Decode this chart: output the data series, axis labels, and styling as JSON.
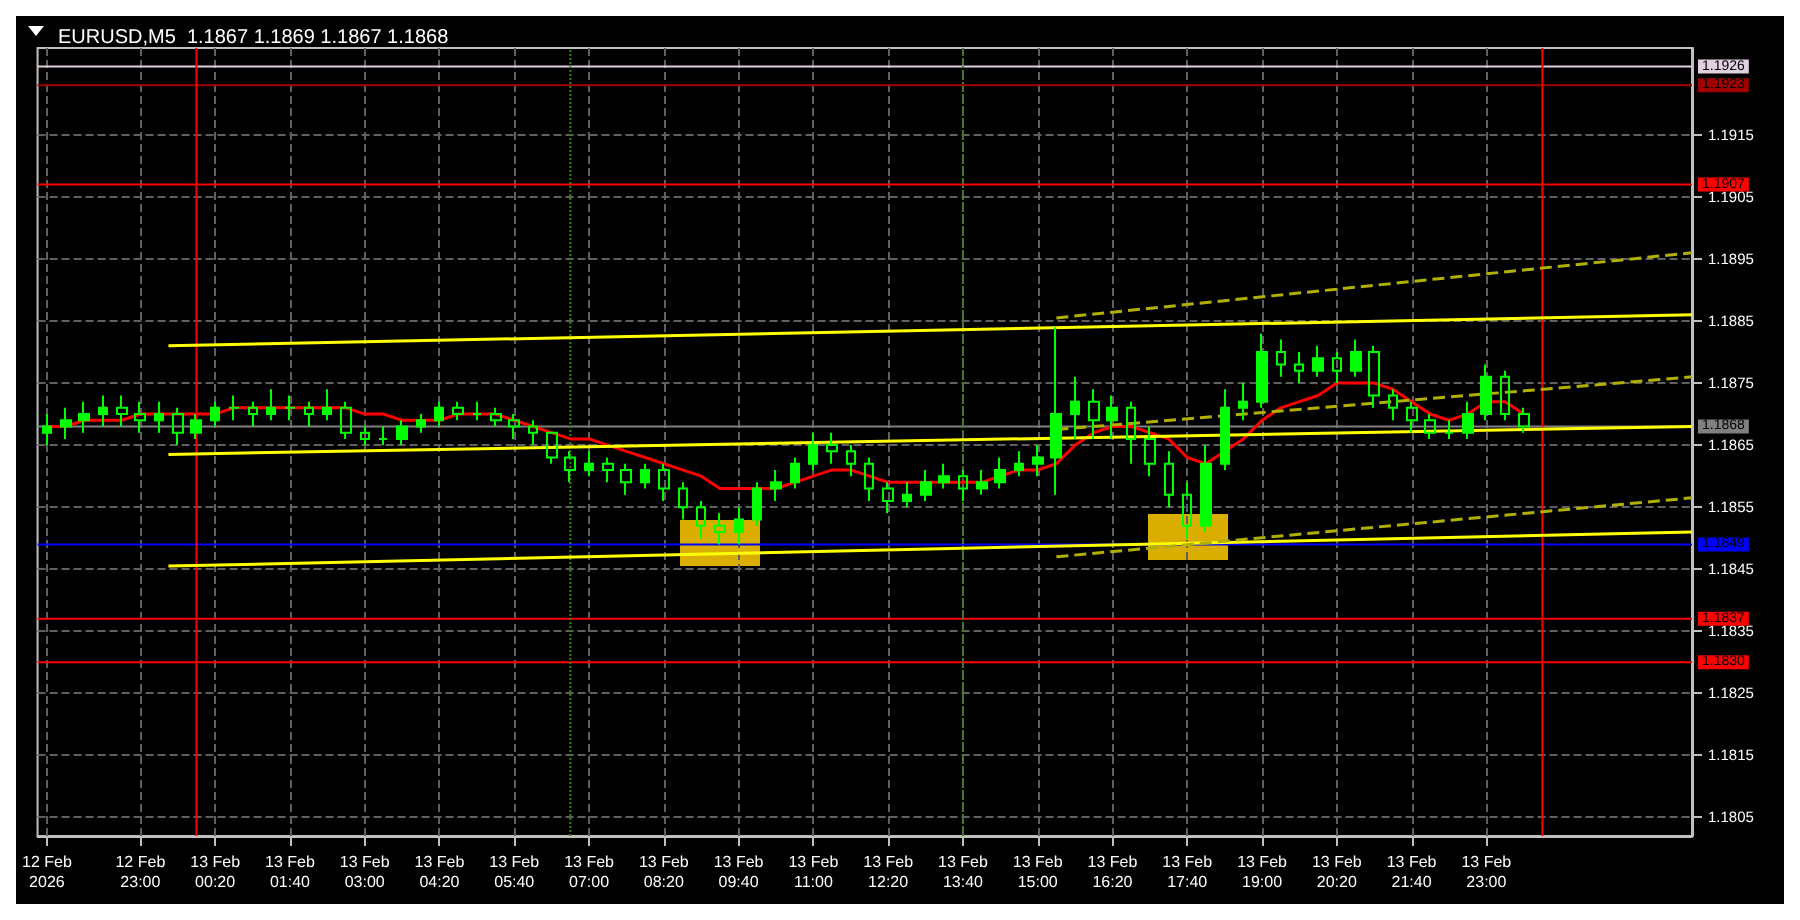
{
  "chart_data": {
    "type": "candlestick",
    "title": "EURUSD,M5  1.1867 1.1869 1.1867 1.1868",
    "color": "#00ff00",
    "x": [
      "2026-02-12T21:20",
      "2026-02-12T21:40",
      "2026-02-12T22:00",
      "2026-02-12T22:20",
      "2026-02-12T22:40",
      "2026-02-12T23:00",
      "2026-02-12T23:20",
      "2026-02-12T23:40",
      "2026-02-13T00:00",
      "2026-02-13T00:20",
      "2026-02-13T00:40",
      "2026-02-13T01:00",
      "2026-02-13T01:20",
      "2026-02-13T01:40",
      "2026-02-13T02:00",
      "2026-02-13T02:20",
      "2026-02-13T02:40",
      "2026-02-13T03:00",
      "2026-02-13T03:20",
      "2026-02-13T03:40",
      "2026-02-13T04:00",
      "2026-02-13T04:20",
      "2026-02-13T04:40",
      "2026-02-13T05:00",
      "2026-02-13T05:20",
      "2026-02-13T05:40",
      "2026-02-13T06:00",
      "2026-02-13T06:20",
      "2026-02-13T06:40",
      "2026-02-13T07:00",
      "2026-02-13T07:20",
      "2026-02-13T07:40",
      "2026-02-13T08:00",
      "2026-02-13T08:20",
      "2026-02-13T08:40",
      "2026-02-13T09:00",
      "2026-02-13T09:20",
      "2026-02-13T09:40",
      "2026-02-13T10:00",
      "2026-02-13T10:20",
      "2026-02-13T10:40",
      "2026-02-13T11:00",
      "2026-02-13T11:20",
      "2026-02-13T11:40",
      "2026-02-13T12:00",
      "2026-02-13T12:20",
      "2026-02-13T12:40",
      "2026-02-13T13:00",
      "2026-02-13T13:20",
      "2026-02-13T13:40",
      "2026-02-13T14:00",
      "2026-02-13T14:20",
      "2026-02-13T14:40",
      "2026-02-13T15:00",
      "2026-02-13T15:20",
      "2026-02-13T15:40",
      "2026-02-13T16:00",
      "2026-02-13T16:20",
      "2026-02-13T16:40",
      "2026-02-13T17:00",
      "2026-02-13T17:20",
      "2026-02-13T17:40",
      "2026-02-13T18:00",
      "2026-02-13T18:20",
      "2026-02-13T18:40",
      "2026-02-13T19:00",
      "2026-02-13T19:20",
      "2026-02-13T19:40",
      "2026-02-13T20:00",
      "2026-02-13T20:20",
      "2026-02-13T20:40",
      "2026-02-13T21:00",
      "2026-02-13T21:20",
      "2026-02-13T21:40",
      "2026-02-13T22:00",
      "2026-02-13T22:20",
      "2026-02-13T22:40",
      "2026-02-13T23:00",
      "2026-02-13T23:20",
      "2026-02-13T23:40"
    ],
    "ohlc": [
      [
        1.1867,
        1.187,
        1.1865,
        1.1868
      ],
      [
        1.1868,
        1.1871,
        1.1866,
        1.1869
      ],
      [
        1.1869,
        1.1872,
        1.1867,
        1.187
      ],
      [
        1.187,
        1.1873,
        1.1868,
        1.1871
      ],
      [
        1.1871,
        1.1873,
        1.1868,
        1.187
      ],
      [
        1.187,
        1.1872,
        1.1867,
        1.1869
      ],
      [
        1.1869,
        1.1872,
        1.1867,
        1.187
      ],
      [
        1.187,
        1.1871,
        1.1865,
        1.1867
      ],
      [
        1.1867,
        1.187,
        1.1866,
        1.1869
      ],
      [
        1.1869,
        1.1872,
        1.1868,
        1.1871
      ],
      [
        1.1871,
        1.1873,
        1.1869,
        1.1871
      ],
      [
        1.1871,
        1.1872,
        1.1868,
        1.187
      ],
      [
        1.187,
        1.1874,
        1.1869,
        1.1871
      ],
      [
        1.1871,
        1.1873,
        1.1869,
        1.1871
      ],
      [
        1.1871,
        1.1872,
        1.1868,
        1.187
      ],
      [
        1.187,
        1.1874,
        1.1869,
        1.1871
      ],
      [
        1.1871,
        1.1872,
        1.1866,
        1.1867
      ],
      [
        1.1867,
        1.1868,
        1.1865,
        1.1866
      ],
      [
        1.1866,
        1.1868,
        1.1865,
        1.1866
      ],
      [
        1.1866,
        1.1869,
        1.1865,
        1.1868
      ],
      [
        1.1868,
        1.187,
        1.1867,
        1.1869
      ],
      [
        1.1869,
        1.1872,
        1.1868,
        1.1871
      ],
      [
        1.1871,
        1.1872,
        1.1869,
        1.187
      ],
      [
        1.187,
        1.1872,
        1.1869,
        1.187
      ],
      [
        1.187,
        1.1871,
        1.1868,
        1.1869
      ],
      [
        1.1869,
        1.187,
        1.1866,
        1.1868
      ],
      [
        1.1868,
        1.1869,
        1.1865,
        1.1867
      ],
      [
        1.1867,
        1.1867,
        1.1862,
        1.1863
      ],
      [
        1.1863,
        1.1864,
        1.1859,
        1.1861
      ],
      [
        1.1861,
        1.1864,
        1.186,
        1.1862
      ],
      [
        1.1862,
        1.1863,
        1.1859,
        1.1861
      ],
      [
        1.1861,
        1.1862,
        1.1857,
        1.1859
      ],
      [
        1.1859,
        1.1862,
        1.1858,
        1.1861
      ],
      [
        1.1861,
        1.1862,
        1.1856,
        1.1858
      ],
      [
        1.1858,
        1.1859,
        1.1853,
        1.1855
      ],
      [
        1.1855,
        1.1856,
        1.185,
        1.1852
      ],
      [
        1.1852,
        1.1854,
        1.1849,
        1.1851
      ],
      [
        1.1851,
        1.1855,
        1.1849,
        1.1853
      ],
      [
        1.1853,
        1.1859,
        1.1852,
        1.1858
      ],
      [
        1.1858,
        1.1861,
        1.1856,
        1.1859
      ],
      [
        1.1859,
        1.1863,
        1.1858,
        1.1862
      ],
      [
        1.1862,
        1.1867,
        1.1861,
        1.1865
      ],
      [
        1.1865,
        1.1867,
        1.1862,
        1.1864
      ],
      [
        1.1864,
        1.1865,
        1.186,
        1.1862
      ],
      [
        1.1862,
        1.1863,
        1.1856,
        1.1858
      ],
      [
        1.1858,
        1.1859,
        1.1854,
        1.1856
      ],
      [
        1.1856,
        1.1859,
        1.1855,
        1.1857
      ],
      [
        1.1857,
        1.1861,
        1.1856,
        1.1859
      ],
      [
        1.1859,
        1.1862,
        1.1858,
        1.186
      ],
      [
        1.186,
        1.1861,
        1.1856,
        1.1858
      ],
      [
        1.1858,
        1.1861,
        1.1857,
        1.1859
      ],
      [
        1.1859,
        1.1863,
        1.1858,
        1.1861
      ],
      [
        1.1861,
        1.1864,
        1.186,
        1.1862
      ],
      [
        1.1862,
        1.1865,
        1.186,
        1.1863
      ],
      [
        1.1863,
        1.1884,
        1.1857,
        1.187
      ],
      [
        1.187,
        1.1876,
        1.1866,
        1.1872
      ],
      [
        1.1872,
        1.1874,
        1.1866,
        1.1869
      ],
      [
        1.1869,
        1.1873,
        1.1866,
        1.1871
      ],
      [
        1.1871,
        1.1872,
        1.1862,
        1.1866
      ],
      [
        1.1866,
        1.1868,
        1.186,
        1.1862
      ],
      [
        1.1862,
        1.1864,
        1.1855,
        1.1857
      ],
      [
        1.1857,
        1.1859,
        1.185,
        1.1852
      ],
      [
        1.1852,
        1.1865,
        1.1851,
        1.1862
      ],
      [
        1.1862,
        1.1874,
        1.1861,
        1.1871
      ],
      [
        1.1871,
        1.1875,
        1.1869,
        1.1872
      ],
      [
        1.1872,
        1.1883,
        1.1871,
        1.188
      ],
      [
        1.188,
        1.1882,
        1.1876,
        1.1878
      ],
      [
        1.1878,
        1.188,
        1.1875,
        1.1877
      ],
      [
        1.1877,
        1.1881,
        1.1876,
        1.1879
      ],
      [
        1.1879,
        1.188,
        1.1875,
        1.1877
      ],
      [
        1.1877,
        1.1882,
        1.1876,
        1.188
      ],
      [
        1.188,
        1.1881,
        1.1871,
        1.1873
      ],
      [
        1.1873,
        1.1874,
        1.1869,
        1.1871
      ],
      [
        1.1871,
        1.1872,
        1.1867,
        1.1869
      ],
      [
        1.1869,
        1.187,
        1.1866,
        1.1867
      ],
      [
        1.1867,
        1.1869,
        1.1866,
        1.1867
      ],
      [
        1.1867,
        1.1872,
        1.1866,
        1.187
      ],
      [
        1.187,
        1.1878,
        1.1869,
        1.1876
      ],
      [
        1.1876,
        1.1877,
        1.1869,
        1.187
      ],
      [
        1.187,
        1.1871,
        1.1867,
        1.1868
      ]
    ],
    "series": [
      {
        "type": "line",
        "color": "#ff0000",
        "values": [
          1.1868,
          1.1868,
          1.1869,
          1.1869,
          1.1869,
          1.187,
          1.187,
          1.187,
          1.187,
          1.187,
          1.1871,
          1.1871,
          1.1871,
          1.1871,
          1.1871,
          1.1871,
          1.1871,
          1.187,
          1.187,
          1.1869,
          1.1869,
          1.1869,
          1.187,
          1.187,
          1.187,
          1.1869,
          1.1868,
          1.1867,
          1.1866,
          1.1866,
          1.1865,
          1.1864,
          1.1863,
          1.1862,
          1.1861,
          1.186,
          1.1858,
          1.1858,
          1.1858,
          1.1858,
          1.1859,
          1.186,
          1.1861,
          1.1861,
          1.186,
          1.1859,
          1.1859,
          1.1859,
          1.1859,
          1.1859,
          1.1859,
          1.186,
          1.1861,
          1.1861,
          1.1862,
          1.1865,
          1.1867,
          1.1868,
          1.1868,
          1.1867,
          1.1866,
          1.1863,
          1.1862,
          1.1864,
          1.1866,
          1.1869,
          1.1871,
          1.1872,
          1.1873,
          1.1875,
          1.1875,
          1.1875,
          1.1874,
          1.1872,
          1.187,
          1.1869,
          1.187,
          1.1872,
          1.1872,
          1.187
        ]
      },
      {
        "type": "line",
        "color": "#ffff00",
        "line_style": "solid",
        "x": [
          "2026-02-12T23:30",
          "2026-02-14T02:40"
        ],
        "values": [
          1.1881,
          1.1886
        ]
      },
      {
        "type": "line",
        "color": "#ffff00",
        "line_style": "solid",
        "x": [
          "2026-02-12T23:30",
          "2026-02-14T02:40"
        ],
        "values": [
          1.18635,
          1.1868
        ]
      },
      {
        "type": "line",
        "color": "#ffff00",
        "line_style": "solid",
        "x": [
          "2026-02-12T23:30",
          "2026-02-14T02:40"
        ],
        "values": [
          1.18455,
          1.1851
        ]
      },
      {
        "type": "line",
        "color": "#b0b000",
        "line_style": "dashed",
        "x": [
          "2026-02-13T15:20",
          "2026-02-14T02:40"
        ],
        "values": [
          1.18855,
          1.1896
        ]
      },
      {
        "type": "line",
        "color": "#b0b000",
        "line_style": "dashed",
        "x": [
          "2026-02-13T15:20",
          "2026-02-14T02:40"
        ],
        "values": [
          1.18675,
          1.1876
        ]
      },
      {
        "type": "line",
        "color": "#b0b000",
        "line_style": "dashed",
        "x": [
          "2026-02-13T15:20",
          "2026-02-14T02:40"
        ],
        "values": [
          1.1847,
          1.18565
        ]
      }
    ],
    "xlim": [
      "2026-02-12T21:10",
      "2026-02-14T02:40"
    ],
    "xticks": [
      {
        "value": "2026-02-12T21:20",
        "label": "12 Feb 2026"
      },
      {
        "value": "2026-02-12T23:00",
        "label": "12 Feb 23:00"
      },
      {
        "value": "2026-02-13T00:20",
        "label": "13 Feb 00:20"
      },
      {
        "value": "2026-02-13T01:40",
        "label": "13 Feb 01:40"
      },
      {
        "value": "2026-02-13T03:00",
        "label": "13 Feb 03:00"
      },
      {
        "value": "2026-02-13T04:20",
        "label": "13 Feb 04:20"
      },
      {
        "value": "2026-02-13T05:40",
        "label": "13 Feb 05:40"
      },
      {
        "value": "2026-02-13T07:00",
        "label": "13 Feb 07:00"
      },
      {
        "value": "2026-02-13T08:20",
        "label": "13 Feb 08:20"
      },
      {
        "value": "2026-02-13T09:40",
        "label": "13 Feb 09:40"
      },
      {
        "value": "2026-02-13T11:00",
        "label": "13 Feb 11:00"
      },
      {
        "value": "2026-02-13T12:20",
        "label": "13 Feb 12:20"
      },
      {
        "value": "2026-02-13T13:40",
        "label": "13 Feb 13:40"
      },
      {
        "value": "2026-02-13T15:00",
        "label": "13 Feb 15:00"
      },
      {
        "value": "2026-02-13T16:20",
        "label": "13 Feb 16:20"
      },
      {
        "value": "2026-02-13T17:40",
        "label": "13 Feb 17:40"
      },
      {
        "value": "2026-02-13T19:00",
        "label": "13 Feb 19:00"
      },
      {
        "value": "2026-02-13T20:20",
        "label": "13 Feb 20:20"
      },
      {
        "value": "2026-02-13T21:40",
        "label": "13 Feb 21:40"
      },
      {
        "value": "2026-02-13T23:00",
        "label": "13 Feb 23:00"
      }
    ],
    "ylim": [
      1.1802,
      1.1929
    ],
    "yticks": [
      1.1805,
      1.1815,
      1.1825,
      1.1835,
      1.1845,
      1.1855,
      1.1865,
      1.1875,
      1.1885,
      1.1895,
      1.1905,
      1.1915
    ],
    "grid": true,
    "ref_lines": [
      {
        "axis": "y",
        "value": 1.1926,
        "label": "1.1926",
        "color": "#e0d0e0"
      },
      {
        "axis": "y",
        "value": 1.1923,
        "label": "1.1923",
        "color": "#a00000"
      },
      {
        "axis": "y",
        "value": 1.1907,
        "label": "1.1907",
        "color": "#ff0000"
      },
      {
        "axis": "y",
        "value": 1.1868,
        "label": "1.1868",
        "color": "#808080"
      },
      {
        "axis": "y",
        "value": 1.1849,
        "label": "1.1849",
        "color": "#0000ff"
      },
      {
        "axis": "y",
        "value": 1.1837,
        "label": "1.1837",
        "color": "#ff0000"
      },
      {
        "axis": "y",
        "value": 1.183,
        "label": "1.1830",
        "color": "#ff0000"
      },
      {
        "axis": "x",
        "value": "2026-02-13T00:00",
        "label": null,
        "color": "#ff0000"
      },
      {
        "axis": "x",
        "value": "2026-02-14T00:00",
        "label": null,
        "color": "#ff0000"
      },
      {
        "axis": "x",
        "value": "2026-02-13T06:40",
        "label": null,
        "color": "#2e8b00",
        "line_style": "dotted"
      },
      {
        "axis": "x",
        "value": "2026-02-13T13:40",
        "label": null,
        "color": "#2e8b00",
        "line_style": "dotted"
      }
    ]
  }
}
